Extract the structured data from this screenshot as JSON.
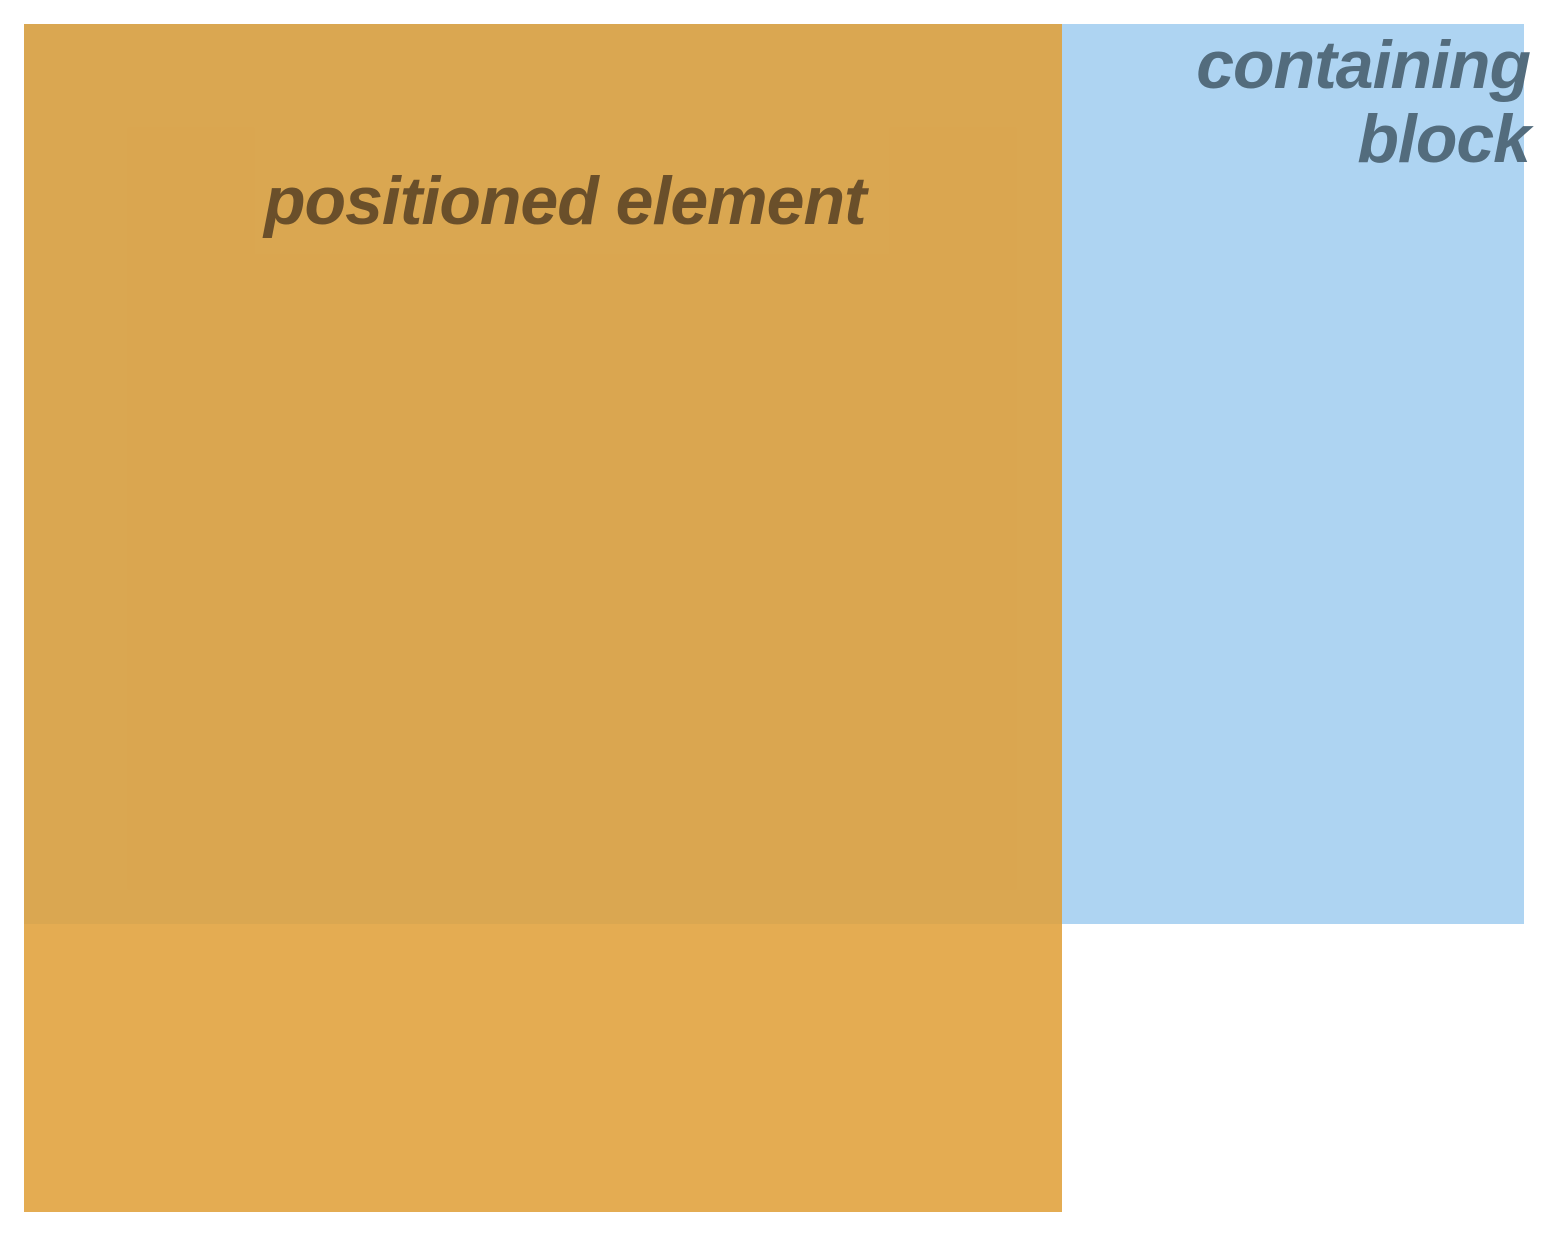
{
  "containing_block": {
    "label_line1": "containing",
    "label_line2": "block",
    "color": "#aed4f2"
  },
  "positioned_element": {
    "label": "positioned element",
    "color": "#e1a34a"
  }
}
